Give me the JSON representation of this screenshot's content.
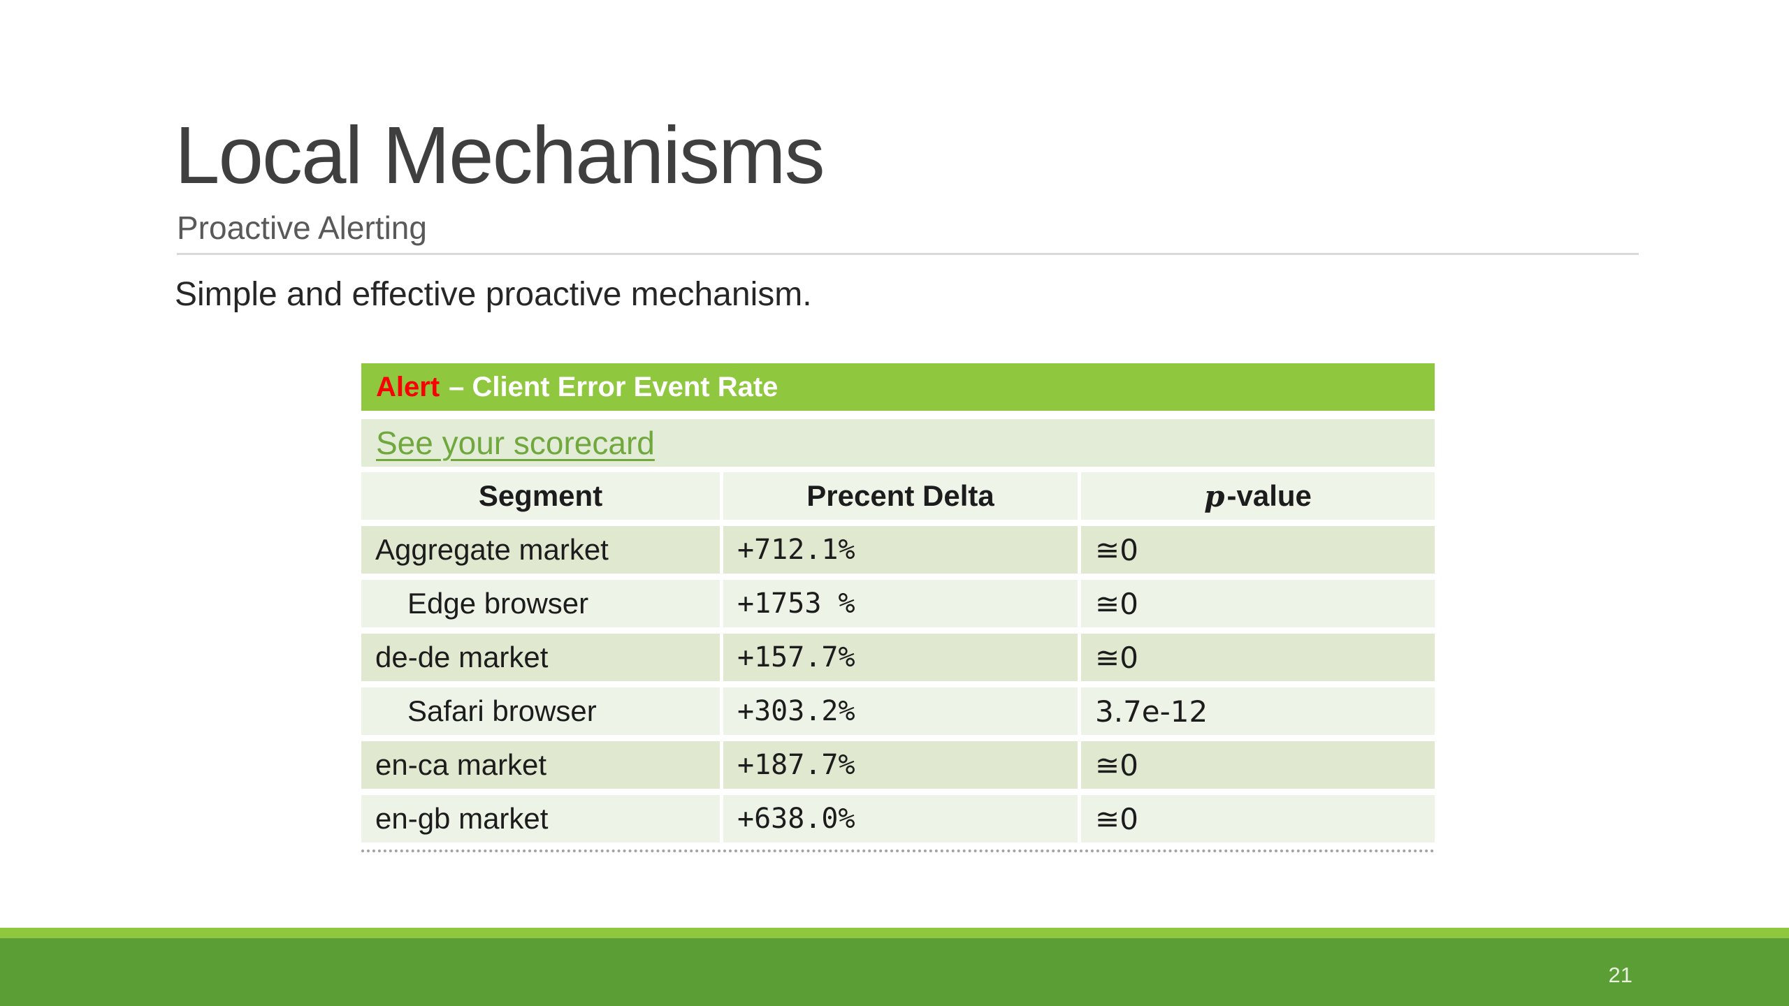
{
  "slide": {
    "title": "Local Mechanisms",
    "subtitle": "Proactive Alerting",
    "body_text": "Simple and effective proactive mechanism.",
    "page_number": "21"
  },
  "alert_table": {
    "banner": {
      "alert_label": "Alert",
      "title": "– Client Error Event Rate"
    },
    "scorecard_link": "See your scorecard",
    "columns": {
      "segment": "Segment",
      "delta": "Precent Delta",
      "p_italic": "p",
      "p_rest": "-value"
    },
    "rows": [
      {
        "segment": "Aggregate market",
        "delta": "+712.1%",
        "p_value": "≅0"
      },
      {
        "segment": "Edge browser",
        "delta": "+1753 %",
        "p_value": "≅0"
      },
      {
        "segment": "de-de market",
        "delta": "+157.7%",
        "p_value": "≅0"
      },
      {
        "segment": "Safari browser",
        "delta": "+303.2%",
        "p_value": "3.7e-12"
      },
      {
        "segment": "en-ca market",
        "delta": "+187.7%",
        "p_value": "≅0"
      },
      {
        "segment": "en-gb market",
        "delta": "+638.0%",
        "p_value": "≅0"
      }
    ]
  },
  "colors": {
    "accent_green": "#8fc73f",
    "footer_green": "#5b9e36",
    "alert_red": "#fb0000",
    "link_green": "#70a83e",
    "row_dark": "#e0e9d0",
    "row_light": "#edf4e7",
    "header_row_bg": "#eef4e8",
    "scorecard_row_bg": "#e2ecd7",
    "title_gray": "#3f3f3f",
    "subtitle_gray": "#595959",
    "divider_gray": "#d9d9d9"
  }
}
